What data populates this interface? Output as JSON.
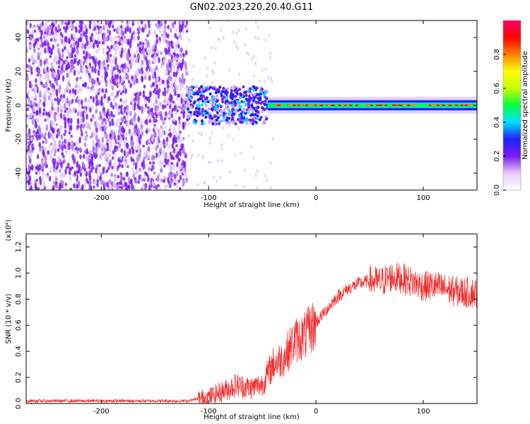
{
  "title": "GN02.2023.220.20.40.G11",
  "chart_data": [
    {
      "type": "heatmap",
      "panel": "top",
      "xlabel": "Height of straight line (km)",
      "ylabel": "Frequency (Hz)",
      "xlim": [
        -270,
        150
      ],
      "ylim": [
        -50,
        50
      ],
      "x_ticks": [
        -200,
        -100,
        0,
        100
      ],
      "x_tick_labels": [
        "-200",
        "-100",
        "0",
        "100"
      ],
      "y_ticks": [
        -40,
        -20,
        0,
        20,
        40
      ],
      "y_tick_labels": [
        "-40",
        "-20",
        "0",
        "20",
        "40"
      ],
      "noise_region_x": [
        -270,
        -120
      ],
      "signal_line_freq_hz": 0,
      "colorbar": {
        "label": "Normalized spectral amplitude",
        "range": [
          0.0,
          1.0
        ],
        "ticks": [
          0.0,
          0.2,
          0.4,
          0.6,
          0.8
        ],
        "tick_labels": [
          "0.0",
          "0.2",
          "0.4",
          "0.6",
          "0.8"
        ],
        "colormap": [
          "#ffffff",
          "#e6ccff",
          "#7a1cf0",
          "#2020ff",
          "#00e0ff",
          "#00ff40",
          "#c8ff00",
          "#ffff00",
          "#ff8000",
          "#ff0000",
          "#ff0066"
        ]
      }
    },
    {
      "type": "line",
      "panel": "bottom",
      "xlabel": "Height of straight line (km)",
      "ylabel": "SNR (10 * v/v)",
      "y_scale_note": "(x10⁴)",
      "xlim": [
        -270,
        150
      ],
      "ylim": [
        0,
        1.3
      ],
      "x_ticks": [
        -200,
        -100,
        0,
        100
      ],
      "x_tick_labels": [
        "-200",
        "-100",
        "0",
        "100"
      ],
      "y_ticks": [
        0.0,
        0.2,
        0.4,
        0.6,
        0.8,
        1.0,
        1.2
      ],
      "y_tick_labels": [
        "0.0",
        "0.2",
        "0.4",
        "0.6",
        "0.8",
        "1.0",
        "1.2"
      ],
      "line_color": "#f03030",
      "series": [
        {
          "x": [
            -270,
            -200,
            -120,
            -100,
            -85,
            -75,
            -60,
            -50,
            -40,
            -30,
            -20,
            -10,
            0,
            10,
            20,
            30,
            40,
            50,
            60,
            70,
            80,
            90,
            100,
            110,
            120,
            130,
            140,
            150
          ],
          "values": [
            0.02,
            0.02,
            0.02,
            0.05,
            0.1,
            0.14,
            0.12,
            0.15,
            0.3,
            0.35,
            0.48,
            0.52,
            0.62,
            0.72,
            0.82,
            0.88,
            0.92,
            0.94,
            0.93,
            0.97,
            0.96,
            0.93,
            0.9,
            0.9,
            0.88,
            0.86,
            0.85,
            0.85
          ]
        }
      ]
    }
  ]
}
